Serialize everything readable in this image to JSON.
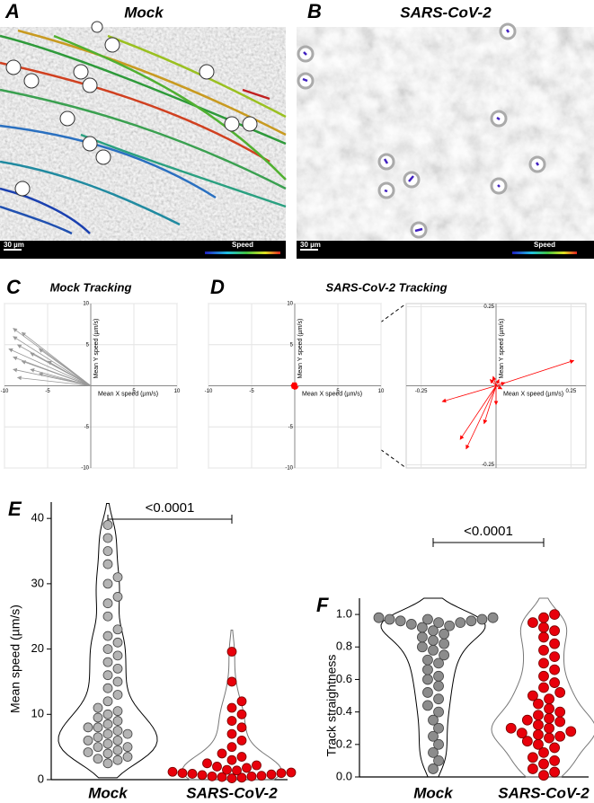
{
  "images": [
    {
      "letter": "A",
      "title": "Mock",
      "scale_bar": "30 µm",
      "legend": "Speed"
    },
    {
      "letter": "B",
      "title": "SARS-CoV-2",
      "scale_bar": "30 µm",
      "legend": "Speed"
    }
  ],
  "chart_data": [
    {
      "type": "vector",
      "letter": "C",
      "title": "Mock Tracking",
      "x_label": "Mean X speed (µm/s)",
      "y_label": "Mean Y speed (µm/s)",
      "color": "#999999",
      "x": [
        -9,
        -9,
        -8.5,
        -9.5,
        -8,
        -7,
        -6,
        -9,
        -8,
        -7,
        -5,
        -9,
        -6,
        -8.5
      ],
      "values": [
        7,
        6,
        5,
        4.5,
        3,
        2,
        1.5,
        3.5,
        6.5,
        4,
        3,
        2,
        4.5,
        1
      ],
      "xlim": [
        -10,
        10
      ],
      "ylim": [
        -10,
        10
      ],
      "xticks": [
        -10,
        -5,
        5,
        10
      ],
      "yticks": [
        -10,
        -5,
        5,
        10
      ]
    },
    {
      "type": "vector",
      "letter": "D",
      "title": "SARS-CoV-2 Tracking",
      "x_label": "Mean X speed (µm/s)",
      "y_label": "Mean Y speed (µm/s)",
      "color": "#ff0000",
      "x": [
        0.26,
        -0.18,
        -0.12,
        -0.1,
        -0.04,
        0,
        -0.01,
        0.01,
        0.03,
        -0.02,
        0.02
      ],
      "values": [
        0.08,
        -0.05,
        -0.17,
        -0.2,
        -0.12,
        -0.06,
        0.03,
        0.02,
        0.01,
        0.02,
        -0.01
      ],
      "xlim": [
        -10,
        10
      ],
      "ylim": [
        -10,
        10
      ],
      "xticks": [
        -10,
        -5,
        5,
        10
      ],
      "yticks": [
        -10,
        -5,
        5,
        10
      ],
      "zoom": {
        "xlim": [
          -0.3,
          0.3
        ],
        "ylim": [
          -0.26,
          0.26
        ],
        "xticks": [
          -0.25,
          0.25
        ],
        "yticks": [
          -0.25,
          0.25
        ]
      }
    },
    {
      "type": "violin",
      "letter": "E",
      "y_label": "Mean speed (µm/s)",
      "categories": [
        "Mock",
        "SARS-CoV-2"
      ],
      "colors": [
        "#b4b4b4",
        "#e8000b"
      ],
      "values": [
        [
          2.5,
          3,
          3.2,
          3.5,
          4,
          4.2,
          4.5,
          5,
          5,
          5.5,
          6,
          6,
          6.5,
          7,
          7,
          7.5,
          8,
          8,
          8.5,
          9,
          9.5,
          10,
          10.5,
          11,
          12,
          13,
          14,
          15,
          16,
          17,
          18,
          19,
          20,
          21,
          22,
          23,
          25,
          27,
          28,
          30,
          31,
          33,
          35,
          37,
          39
        ],
        [
          0.2,
          0.3,
          0.4,
          0.5,
          0.5,
          0.6,
          0.7,
          0.8,
          0.9,
          1,
          1,
          1.1,
          1.2,
          1.4,
          1.5,
          1.8,
          2,
          2.2,
          2.5,
          3,
          3.5,
          4,
          5,
          6,
          7,
          8,
          9,
          10,
          11,
          12,
          15,
          19.6
        ]
      ],
      "ylim": [
        0,
        42.5
      ],
      "yticks": [
        0,
        10,
        20,
        30,
        40
      ],
      "annotation": "<0.0001"
    },
    {
      "type": "violin",
      "letter": "F",
      "y_label": "Track straightness",
      "categories": [
        "Mock",
        "SARS-CoV-2"
      ],
      "colors": [
        "#8c8c8c",
        "#e8000b"
      ],
      "values": [
        [
          0.98,
          0.98,
          0.97,
          0.97,
          0.97,
          0.96,
          0.96,
          0.95,
          0.95,
          0.94,
          0.93,
          0.92,
          0.9,
          0.88,
          0.86,
          0.84,
          0.82,
          0.8,
          0.78,
          0.75,
          0.72,
          0.7,
          0.66,
          0.62,
          0.6,
          0.56,
          0.52,
          0.48,
          0.44,
          0.4,
          0.35,
          0.3,
          0.25,
          0.2,
          0.15,
          0.1,
          0.05
        ],
        [
          1,
          0.98,
          0.95,
          0.92,
          0.9,
          0.86,
          0.82,
          0.78,
          0.74,
          0.7,
          0.66,
          0.62,
          0.58,
          0.55,
          0.52,
          0.5,
          0.48,
          0.45,
          0.42,
          0.4,
          0.38,
          0.36,
          0.35,
          0.34,
          0.32,
          0.3,
          0.3,
          0.28,
          0.27,
          0.26,
          0.25,
          0.24,
          0.22,
          0.2,
          0.18,
          0.15,
          0.12,
          0.1,
          0.08,
          0.05,
          0.03,
          0.01
        ]
      ],
      "ylim": [
        0,
        1.1
      ],
      "yticks": [
        {
          "value": 0,
          "label": "0.0"
        },
        {
          "value": 0.2,
          "label": "0.2"
        },
        {
          "value": 0.4,
          "label": "0.4"
        },
        {
          "value": 0.6,
          "label": "0.6"
        },
        {
          "value": 0.8,
          "label": "0.8"
        },
        {
          "value": 1,
          "label": "1.0"
        }
      ],
      "annotation": "<0.0001"
    }
  ]
}
